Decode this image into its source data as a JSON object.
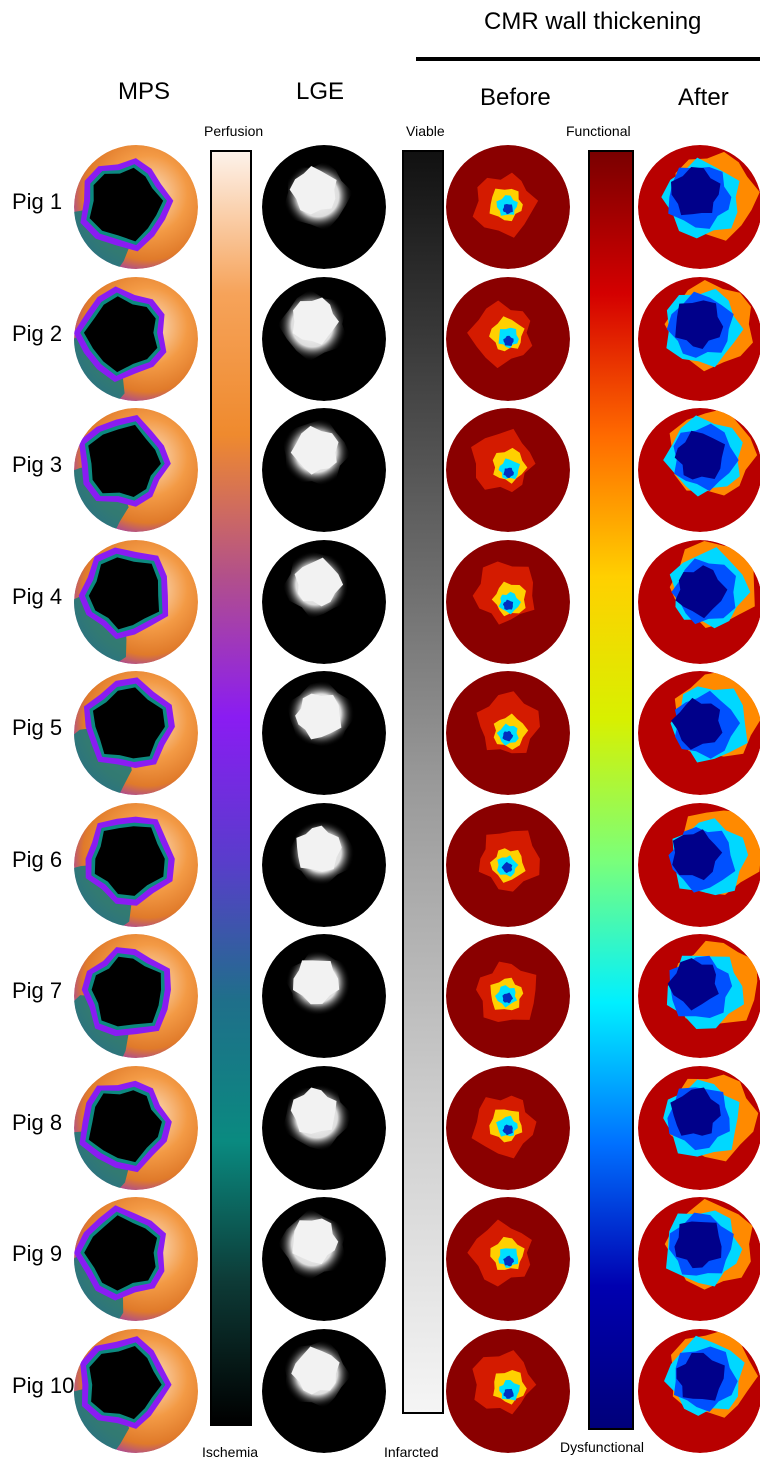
{
  "figure": {
    "group_title": "CMR wall thickening",
    "columns": [
      "MPS",
      "LGE",
      "Before",
      "After"
    ],
    "colorbars": {
      "perfusion": {
        "top_label": "Perfusion",
        "bottom_label": "Ischemia"
      },
      "viability": {
        "top_label": "Viable",
        "bottom_label": "Infarcted"
      },
      "function": {
        "top_label": "Functional",
        "bottom_label": "Dysfunctional"
      }
    },
    "rows": [
      {
        "label": "Pig 1"
      },
      {
        "label": "Pig 2"
      },
      {
        "label": "Pig 3"
      },
      {
        "label": "Pig 4"
      },
      {
        "label": "Pig 5"
      },
      {
        "label": "Pig 6"
      },
      {
        "label": "Pig 7"
      },
      {
        "label": "Pig 8"
      },
      {
        "label": "Pig 9"
      },
      {
        "label": "Pig 10"
      }
    ]
  },
  "colors": {
    "perfusion_scale": [
      "#fdf2ea",
      "#f6a35a",
      "#ef8a2e",
      "#b2508a",
      "#8a1cf2",
      "#5a3ccc",
      "#1f6f8a",
      "#0a8a80",
      "#0d3a36",
      "#000000"
    ],
    "viability_scale": [
      "#111111",
      "#555555",
      "#999999",
      "#cccccc",
      "#f5f5f5"
    ],
    "function_scale": [
      "#7a0000",
      "#d40000",
      "#ff6a00",
      "#ffd000",
      "#d8f000",
      "#7aff7a",
      "#00f0ff",
      "#0070ff",
      "#0000b0",
      "#00007a"
    ]
  }
}
